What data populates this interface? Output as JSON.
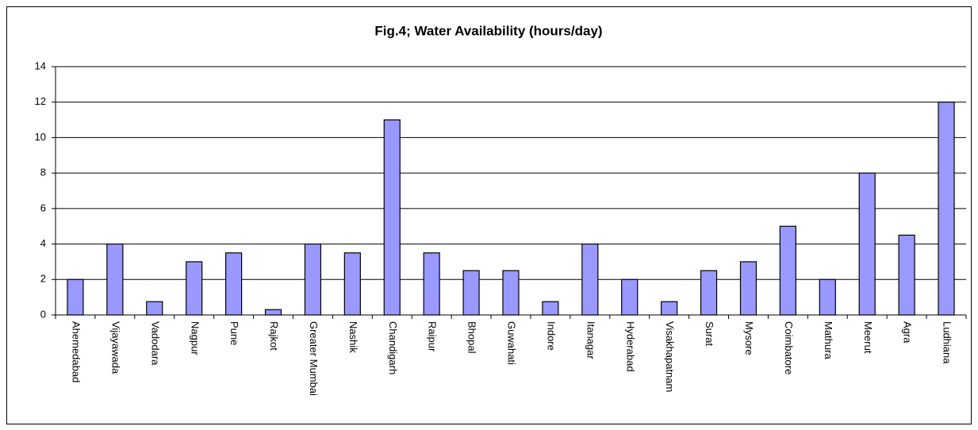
{
  "chart_data": {
    "type": "bar",
    "title": "Fig.4; Water Availability (hours/day)",
    "categories": [
      "Ahemedabad",
      "Vijayawada",
      "Vadodara",
      "Nagpur",
      "Pune",
      "Rajkot",
      "Greater Mumbai",
      "Nashik",
      "Chandigarh",
      "Raipur",
      "Bhopal",
      "Guwahati",
      "Indore",
      "Itanagar",
      "Hyderabad",
      "Visakhapatnam",
      "Surat",
      "Mysore",
      "Coimbatore",
      "Mathura",
      "Meerut",
      "Agra",
      "Ludhiana"
    ],
    "values": [
      2,
      4,
      0.75,
      3,
      3.5,
      0.3,
      4,
      3.5,
      11,
      3.5,
      2.5,
      2.5,
      0.75,
      4,
      2,
      0.75,
      2.5,
      3,
      5,
      2,
      8,
      4.5,
      12
    ],
    "color": "#9999ff",
    "ylim": [
      0,
      14
    ],
    "yticks": [
      0,
      2,
      4,
      6,
      8,
      10,
      12,
      14
    ],
    "grid": true
  }
}
